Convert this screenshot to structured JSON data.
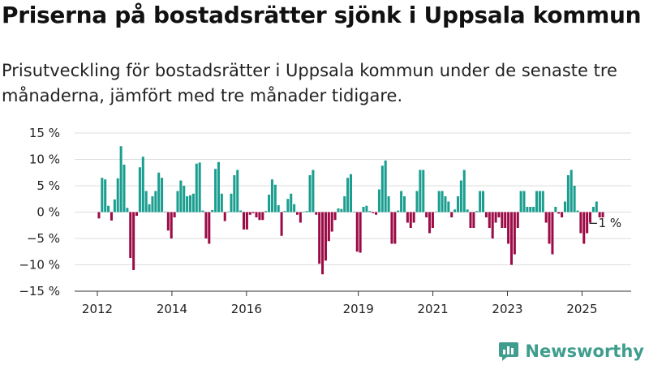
{
  "title": "Priserna på bostadsrätter sjönk i Uppsala kommun",
  "subtitle": "Prisutveckling för bostadsrätter i Uppsala kommun under de senaste tre månaderna, jämfört med tre månader tidigare.",
  "brand": {
    "name": "Newsworthy",
    "icon": "bar-chart-logo-icon"
  },
  "chart_data": {
    "type": "bar",
    "ylim": [
      -15,
      15
    ],
    "yticks": [
      15,
      10,
      5,
      0,
      -5,
      -10,
      -15
    ],
    "ytick_labels": [
      "15 %",
      "10 %",
      "5 %",
      "0 %",
      "−5 %",
      "−10 %",
      "−15 %"
    ],
    "x_start": 2012,
    "x_end": 2025.6,
    "xticks": [
      2012,
      2014,
      2016,
      2019,
      2021,
      2023,
      2025
    ],
    "xtick_labels": [
      "2012",
      "2014",
      "2016",
      "2019",
      "2021",
      "2023",
      "2025"
    ],
    "grid": true,
    "colors": {
      "positive": "#1a9e8f",
      "negative": "#9c0b45",
      "grid": "#dddddd"
    },
    "annotation": {
      "text": "−1 %",
      "value": -1
    },
    "values": [
      -1.2,
      6.5,
      6.2,
      1.2,
      -1.6,
      2.4,
      6.4,
      12.5,
      9.0,
      0.8,
      -8.7,
      -11.0,
      -0.7,
      8.5,
      10.5,
      4.0,
      1.5,
      3.0,
      4.0,
      7.5,
      6.5,
      0.1,
      -3.5,
      -5.0,
      -1.0,
      4.0,
      6.0,
      5.0,
      3.0,
      3.2,
      3.5,
      9.2,
      9.4,
      0.3,
      -5.0,
      -6.0,
      0.4,
      8.2,
      9.5,
      3.5,
      -1.7,
      0.1,
      3.5,
      7.0,
      8.0,
      0.3,
      -3.3,
      -3.3,
      -0.5,
      -0.2,
      -1.0,
      -1.5,
      -1.5,
      0.2,
      3.3,
      6.2,
      5.2,
      1.3,
      -4.5,
      0.2,
      2.5,
      3.5,
      1.5,
      -0.5,
      -2.0,
      0.1,
      0.2,
      7.0,
      8.0,
      -0.5,
      -9.8,
      -11.8,
      -9.2,
      -5.5,
      -3.7,
      -1.5,
      0.7,
      0.6,
      3.0,
      6.5,
      7.2,
      0.1,
      -7.5,
      -7.7,
      1.0,
      1.2,
      0.2,
      -0.2,
      -0.5,
      4.3,
      8.8,
      9.8,
      3.0,
      -6.0,
      -6.0,
      0.3,
      4.0,
      3.0,
      -2.0,
      -3.0,
      -2.0,
      4.0,
      8.0,
      8.0,
      -1.0,
      -4.0,
      -3.0,
      0.1,
      4.0,
      4.0,
      3.0,
      2.0,
      -1.0,
      0.5,
      3.0,
      6.0,
      8.0,
      0.5,
      -3.0,
      -3.0,
      0.2,
      4.0,
      4.0,
      -1.0,
      -3.0,
      -5.0,
      -2.0,
      -1.0,
      -3.0,
      -3.0,
      -6.0,
      -10.0,
      -8.0,
      -3.0,
      4.0,
      4.0,
      1.0,
      1.0,
      1.0,
      4.0,
      4.0,
      4.0,
      -2.0,
      -6.0,
      -8.0,
      1.0,
      -0.3,
      -1.0,
      2.0,
      7.0,
      8.0,
      5.0,
      0.3,
      -4.0,
      -6.0,
      -4.0,
      -2.0,
      1.0,
      2.0,
      -1.0,
      -1.0
    ]
  }
}
